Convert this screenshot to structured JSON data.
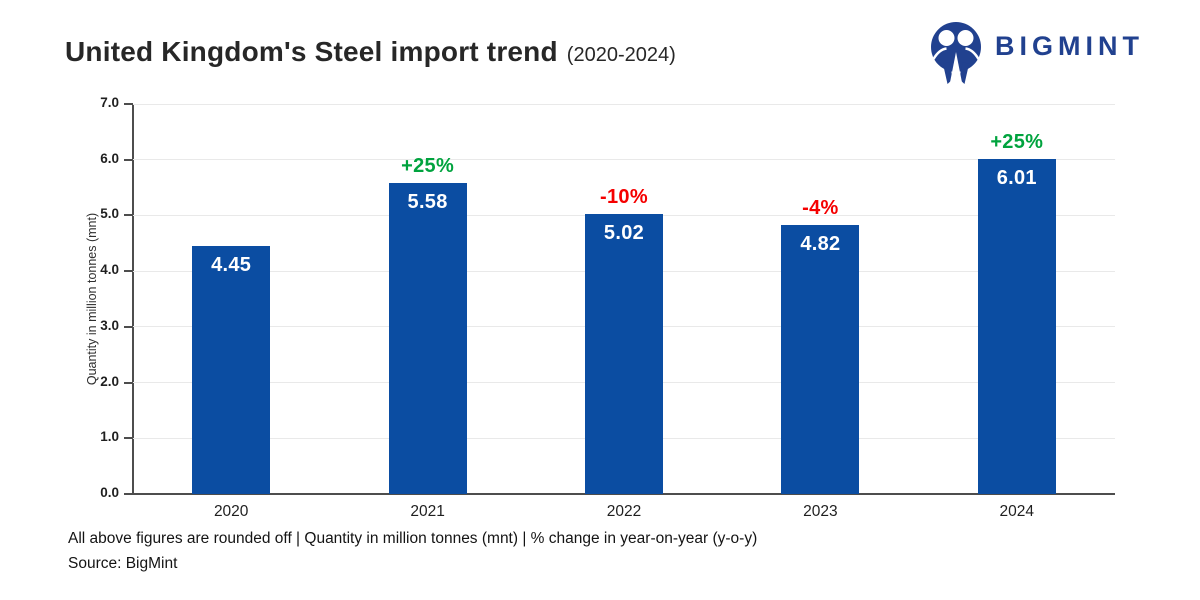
{
  "header": {
    "title": "United Kingdom's Steel import trend",
    "subtitle": "(2020-2024)",
    "logo_text": "BIGMINT",
    "logo_color": "#21418f"
  },
  "chart_data": {
    "type": "bar",
    "title": "United Kingdom's Steel import trend (2020-2024)",
    "categories": [
      "2020",
      "2021",
      "2022",
      "2023",
      "2024"
    ],
    "values": [
      4.45,
      5.58,
      5.02,
      4.82,
      6.01
    ],
    "bar_labels": [
      "4.45",
      "5.58",
      "5.02",
      "4.82",
      "6.01"
    ],
    "change_labels": [
      "",
      "+25%",
      "-10%",
      "-4%",
      "+25%"
    ],
    "xlabel": "",
    "ylabel": "Quantity in million tonnes (mnt)",
    "ylim": [
      0,
      7
    ],
    "ytick_step": 1,
    "ytick_labels": [
      "0.0",
      "1.0",
      "2.0",
      "3.0",
      "4.0",
      "5.0",
      "6.0",
      "7.0"
    ],
    "grid": true,
    "legend": "none",
    "bar_color": "#0b4da2",
    "positive_color": "#00a33e",
    "negative_color": "#f50000"
  },
  "footer": {
    "note": "All above figures are rounded off  |  Quantity in million tonnes (mnt)  |  % change in year-on-year (y-o-y)",
    "source": "Source: BigMint"
  }
}
